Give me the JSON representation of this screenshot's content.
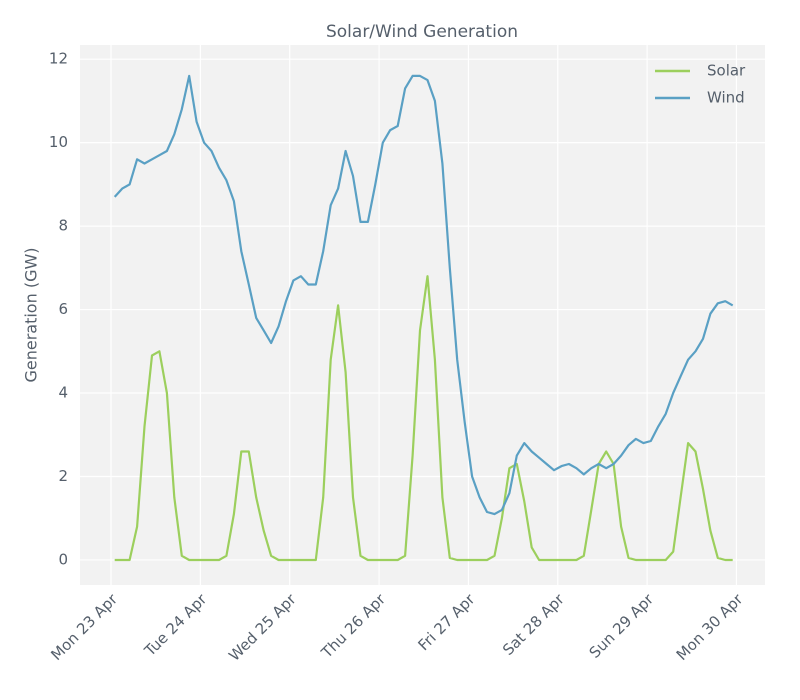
{
  "chart_data": {
    "type": "line",
    "title": "Solar/Wind Generation",
    "ylabel": "Generation (GW)",
    "x": [
      "23 Apr 01:00",
      "23 Apr 03:00",
      "23 Apr 05:00",
      "23 Apr 07:00",
      "23 Apr 09:00",
      "23 Apr 11:00",
      "23 Apr 13:00",
      "23 Apr 15:00",
      "23 Apr 17:00",
      "23 Apr 19:00",
      "23 Apr 21:00",
      "23 Apr 23:00",
      "24 Apr 01:00",
      "24 Apr 03:00",
      "24 Apr 05:00",
      "24 Apr 07:00",
      "24 Apr 09:00",
      "24 Apr 11:00",
      "24 Apr 13:00",
      "24 Apr 15:00",
      "24 Apr 17:00",
      "24 Apr 19:00",
      "24 Apr 21:00",
      "24 Apr 23:00",
      "25 Apr 01:00",
      "25 Apr 03:00",
      "25 Apr 05:00",
      "25 Apr 07:00",
      "25 Apr 09:00",
      "25 Apr 11:00",
      "25 Apr 13:00",
      "25 Apr 15:00",
      "25 Apr 17:00",
      "25 Apr 19:00",
      "25 Apr 21:00",
      "25 Apr 23:00",
      "26 Apr 01:00",
      "26 Apr 03:00",
      "26 Apr 05:00",
      "26 Apr 07:00",
      "26 Apr 09:00",
      "26 Apr 11:00",
      "26 Apr 13:00",
      "26 Apr 15:00",
      "26 Apr 17:00",
      "26 Apr 19:00",
      "26 Apr 21:00",
      "26 Apr 23:00",
      "27 Apr 01:00",
      "27 Apr 03:00",
      "27 Apr 05:00",
      "27 Apr 07:00",
      "27 Apr 09:00",
      "27 Apr 11:00",
      "27 Apr 13:00",
      "27 Apr 15:00",
      "27 Apr 17:00",
      "27 Apr 19:00",
      "27 Apr 21:00",
      "27 Apr 23:00",
      "28 Apr 01:00",
      "28 Apr 03:00",
      "28 Apr 05:00",
      "28 Apr 07:00",
      "28 Apr 09:00",
      "28 Apr 11:00",
      "28 Apr 13:00",
      "28 Apr 15:00",
      "28 Apr 17:00",
      "28 Apr 19:00",
      "28 Apr 21:00",
      "28 Apr 23:00",
      "29 Apr 01:00",
      "29 Apr 03:00",
      "29 Apr 05:00",
      "29 Apr 07:00",
      "29 Apr 09:00",
      "29 Apr 11:00",
      "29 Apr 13:00",
      "29 Apr 15:00",
      "29 Apr 17:00",
      "29 Apr 19:00",
      "29 Apr 21:00",
      "29 Apr 23:00"
    ],
    "series": [
      {
        "name": "Solar",
        "color": "#9ccf5d",
        "values": [
          0,
          0,
          0,
          0.8,
          3.2,
          4.9,
          5.0,
          4.0,
          1.5,
          0.1,
          0,
          0,
          0,
          0,
          0,
          0.1,
          1.1,
          2.6,
          2.6,
          1.5,
          0.7,
          0.1,
          0,
          0,
          0,
          0,
          0,
          0,
          1.5,
          4.8,
          6.1,
          4.5,
          1.5,
          0.1,
          0,
          0,
          0,
          0,
          0,
          0.1,
          2.5,
          5.5,
          6.8,
          4.8,
          1.5,
          0.05,
          0,
          0,
          0,
          0,
          0,
          0.1,
          1.0,
          2.2,
          2.3,
          1.4,
          0.3,
          0,
          0,
          0,
          0,
          0,
          0,
          0.1,
          1.2,
          2.3,
          2.6,
          2.3,
          0.8,
          0.05,
          0,
          0,
          0,
          0,
          0,
          0.2,
          1.5,
          2.8,
          2.6,
          1.7,
          0.7,
          0.05,
          0,
          0
        ]
      },
      {
        "name": "Wind",
        "color": "#5aa0c4",
        "values": [
          8.7,
          8.9,
          9.0,
          9.6,
          9.5,
          9.6,
          9.7,
          9.8,
          10.2,
          10.8,
          11.6,
          10.5,
          10.0,
          9.8,
          9.4,
          9.1,
          8.6,
          7.4,
          6.6,
          5.8,
          5.5,
          5.2,
          5.6,
          6.2,
          6.7,
          6.8,
          6.6,
          6.6,
          7.4,
          8.5,
          8.9,
          9.8,
          9.2,
          8.1,
          8.1,
          9.0,
          10.0,
          10.3,
          10.4,
          11.3,
          11.6,
          11.6,
          11.5,
          11.0,
          9.5,
          7.0,
          4.8,
          3.3,
          2.0,
          1.5,
          1.15,
          1.1,
          1.2,
          1.6,
          2.5,
          2.8,
          2.6,
          2.45,
          2.3,
          2.15,
          2.25,
          2.3,
          2.2,
          2.05,
          2.2,
          2.3,
          2.2,
          2.3,
          2.5,
          2.75,
          2.9,
          2.8,
          2.85,
          3.2,
          3.5,
          4.0,
          4.4,
          4.8,
          5.0,
          5.3,
          5.9,
          6.15,
          6.2,
          6.1
        ]
      }
    ],
    "xlim": [
      "22 Apr 15:40",
      "30 Apr 07:40"
    ],
    "xticks": [
      {
        "value": "23 Apr 00:00",
        "label": "Mon 23 Apr"
      },
      {
        "value": "24 Apr 00:00",
        "label": "Tue 24 Apr"
      },
      {
        "value": "25 Apr 00:00",
        "label": "Wed 25 Apr"
      },
      {
        "value": "26 Apr 00:00",
        "label": "Thu 26 Apr"
      },
      {
        "value": "27 Apr 00:00",
        "label": "Fri 27 Apr"
      },
      {
        "value": "28 Apr 00:00",
        "label": "Sat 28 Apr"
      },
      {
        "value": "29 Apr 00:00",
        "label": "Sun 29 Apr"
      },
      {
        "value": "30 Apr 00:00",
        "label": "Mon 30 Apr"
      }
    ],
    "ylim": [
      -0.6,
      12.34
    ],
    "yticks": [
      0,
      2,
      4,
      6,
      8,
      10,
      12
    ],
    "grid": true,
    "legend": "upper right"
  }
}
